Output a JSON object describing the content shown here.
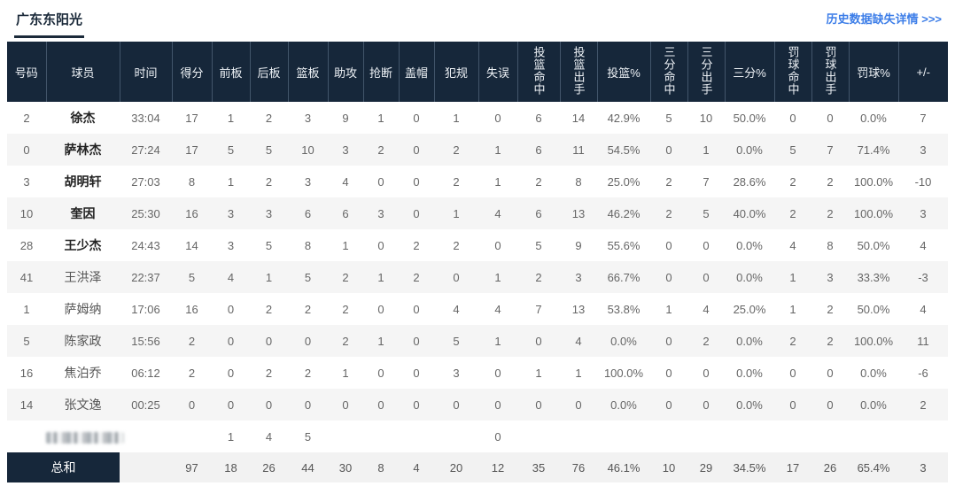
{
  "page": {
    "team_tab": "广东东阳光",
    "history_link": "历史数据缺失详情 >>>"
  },
  "colors": {
    "header_bg": "#16273a",
    "link_blue": "#3d7ee8",
    "row_alt_bg": "#f5f5f5",
    "total_row_bg": "#f2f2f2",
    "tab_underline": "#1b2a3a"
  },
  "table": {
    "headers": [
      "号码",
      "球员",
      "时间",
      "得分",
      "前板",
      "后板",
      "篮板",
      "助攻",
      "抢断",
      "盖帽",
      "犯规",
      "失误",
      "投篮命中",
      "投篮出手",
      "投篮%",
      "三分命中",
      "三分出手",
      "三分%",
      "罚球命中",
      "罚球出手",
      "罚球%",
      "+/-"
    ],
    "players": [
      {
        "starter": true,
        "cells": [
          "2",
          "徐杰",
          "33:04",
          "17",
          "1",
          "2",
          "3",
          "9",
          "1",
          "0",
          "1",
          "0",
          "6",
          "14",
          "42.9%",
          "5",
          "10",
          "50.0%",
          "0",
          "0",
          "0.0%",
          "7"
        ]
      },
      {
        "starter": true,
        "cells": [
          "0",
          "萨林杰",
          "27:24",
          "17",
          "5",
          "5",
          "10",
          "3",
          "2",
          "0",
          "2",
          "1",
          "6",
          "11",
          "54.5%",
          "0",
          "1",
          "0.0%",
          "5",
          "7",
          "71.4%",
          "3"
        ]
      },
      {
        "starter": true,
        "cells": [
          "3",
          "胡明轩",
          "27:03",
          "8",
          "1",
          "2",
          "3",
          "4",
          "0",
          "0",
          "2",
          "1",
          "2",
          "8",
          "25.0%",
          "2",
          "7",
          "28.6%",
          "2",
          "2",
          "100.0%",
          "-10"
        ]
      },
      {
        "starter": true,
        "cells": [
          "10",
          "奎因",
          "25:30",
          "16",
          "3",
          "3",
          "6",
          "6",
          "3",
          "0",
          "1",
          "4",
          "6",
          "13",
          "46.2%",
          "2",
          "5",
          "40.0%",
          "2",
          "2",
          "100.0%",
          "3"
        ]
      },
      {
        "starter": true,
        "cells": [
          "28",
          "王少杰",
          "24:43",
          "14",
          "3",
          "5",
          "8",
          "1",
          "0",
          "2",
          "2",
          "0",
          "5",
          "9",
          "55.6%",
          "0",
          "0",
          "0.0%",
          "4",
          "8",
          "50.0%",
          "4"
        ]
      },
      {
        "starter": false,
        "cells": [
          "41",
          "王洪泽",
          "22:37",
          "5",
          "4",
          "1",
          "5",
          "2",
          "1",
          "2",
          "0",
          "1",
          "2",
          "3",
          "66.7%",
          "0",
          "0",
          "0.0%",
          "1",
          "3",
          "33.3%",
          "-3"
        ]
      },
      {
        "starter": false,
        "cells": [
          "1",
          "萨姆纳",
          "17:06",
          "16",
          "0",
          "2",
          "2",
          "2",
          "0",
          "0",
          "4",
          "4",
          "7",
          "13",
          "53.8%",
          "1",
          "4",
          "25.0%",
          "1",
          "2",
          "50.0%",
          "4"
        ]
      },
      {
        "starter": false,
        "cells": [
          "5",
          "陈家政",
          "15:56",
          "2",
          "0",
          "0",
          "0",
          "2",
          "1",
          "0",
          "5",
          "1",
          "0",
          "4",
          "0.0%",
          "0",
          "2",
          "0.0%",
          "2",
          "2",
          "100.0%",
          "11"
        ]
      },
      {
        "starter": false,
        "cells": [
          "16",
          "焦泊乔",
          "06:12",
          "2",
          "0",
          "2",
          "2",
          "1",
          "0",
          "0",
          "3",
          "0",
          "1",
          "1",
          "100.0%",
          "0",
          "0",
          "0.0%",
          "0",
          "0",
          "0.0%",
          "-6"
        ]
      },
      {
        "starter": false,
        "cells": [
          "14",
          "张文逸",
          "00:25",
          "0",
          "0",
          "0",
          "0",
          "0",
          "0",
          "0",
          "0",
          "0",
          "0",
          "0",
          "0.0%",
          "0",
          "0",
          "0.0%",
          "0",
          "0",
          "0.0%",
          "2"
        ]
      }
    ],
    "team_row": {
      "name_blurred": true,
      "cells": [
        "",
        "",
        "",
        "",
        "1",
        "4",
        "5",
        "",
        "",
        "",
        "",
        "0",
        "",
        "",
        "",
        "",
        "",
        "",
        "",
        "",
        "",
        ""
      ]
    },
    "total_row": {
      "label": "总和",
      "cells": [
        "",
        "97",
        "18",
        "26",
        "44",
        "30",
        "8",
        "4",
        "20",
        "12",
        "35",
        "76",
        "46.1%",
        "10",
        "29",
        "34.5%",
        "17",
        "26",
        "65.4%",
        "3"
      ]
    }
  }
}
